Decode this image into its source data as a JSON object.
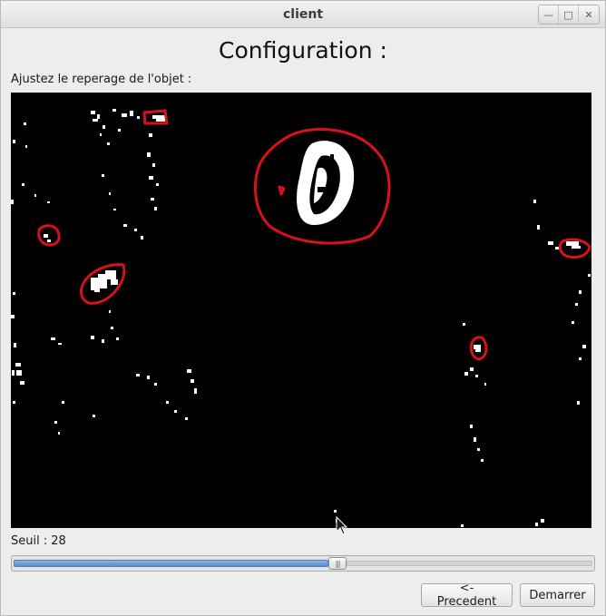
{
  "window": {
    "title": "client",
    "controls": {
      "minimize_icon": "minimize-icon",
      "maximize_icon": "maximize-icon",
      "close_icon": "close-icon"
    }
  },
  "main": {
    "heading": "Configuration :",
    "subtitle": "Ajustez le reperage de l'objet :",
    "seuil_label": "Seuil :",
    "seuil_value": "28",
    "slider_fraction": 0.56
  },
  "buttons": {
    "previous": "<- Precedent",
    "start": "Demarrer"
  },
  "colors": {
    "detection_outline": "#d8121a",
    "slider_fill": "#6a9bd6",
    "camera_background": "#000000"
  }
}
